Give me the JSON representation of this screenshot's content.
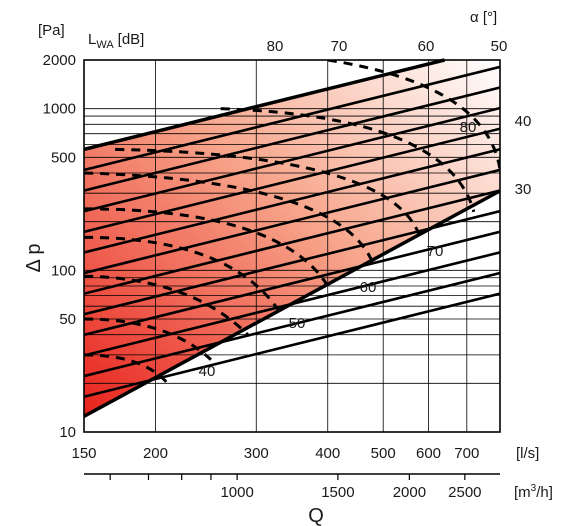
{
  "chart_data": {
    "type": "line",
    "title": "",
    "x_axis": {
      "label": "Q",
      "scale": "log",
      "range": [
        150,
        800
      ],
      "primary_unit": "[l/s]",
      "primary_ticks": [
        150,
        200,
        300,
        400,
        500,
        600,
        700
      ],
      "primary_tick_labels": [
        "150",
        "200",
        "300",
        "400",
        "500",
        "600",
        "700"
      ],
      "secondary_unit": "[m3/h]",
      "secondary_unit_base": "[m",
      "secondary_unit_sup": "3",
      "secondary_unit_tail": "/h]",
      "secondary_ticks": [
        1000,
        1500,
        2000,
        2500
      ],
      "secondary_tick_labels": [
        "1000",
        "1500",
        "2000",
        "2500"
      ]
    },
    "y_axis": {
      "label": "Δ p",
      "unit": "[Pa]",
      "scale": "log",
      "range": [
        10,
        2000
      ],
      "ticks": [
        10,
        50,
        100,
        500,
        1000,
        2000
      ],
      "tick_labels": [
        "10",
        "50",
        "100",
        "500",
        "1000",
        "2000"
      ]
    },
    "sound_power": {
      "label_main": "L",
      "label_sub": "WA",
      "label_unit": "[dB]",
      "line_labels": [
        "40",
        "50",
        "60",
        "70",
        "80"
      ]
    },
    "blade_angle": {
      "label": "α [°]",
      "top_labels": [
        "80",
        "70",
        "60",
        "50"
      ],
      "right_labels": [
        "40",
        "30"
      ],
      "inner_label": "80"
    },
    "boundary": {
      "upper": [
        [
          150,
          560
        ],
        [
          640,
          2000
        ]
      ],
      "lower": [
        [
          150,
          12.5
        ],
        [
          800,
          310
        ]
      ]
    },
    "colors": {
      "fill_dark": "#e8231d",
      "fill_light": "#ffffff",
      "lines": "#000000"
    },
    "grid": true
  }
}
